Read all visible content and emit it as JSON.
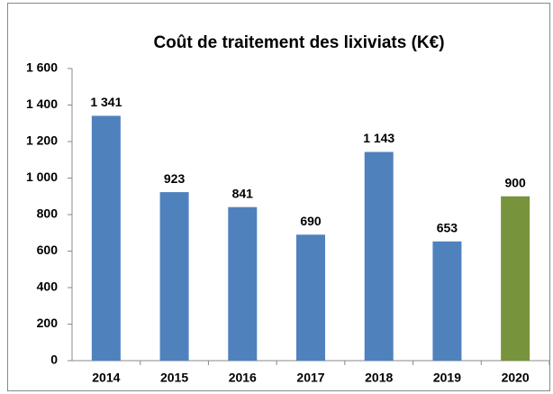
{
  "chart_data": {
    "type": "bar",
    "title": "Coût de traitement des lixiviats (K€)",
    "categories": [
      "2014",
      "2015",
      "2016",
      "2017",
      "2018",
      "2019",
      "2020"
    ],
    "values": [
      1341,
      923,
      841,
      690,
      1143,
      653,
      900
    ],
    "value_labels": [
      "1 341",
      "923",
      "841",
      "690",
      "1 143",
      "653",
      "900"
    ],
    "colors": [
      "#4f81bd",
      "#4f81bd",
      "#4f81bd",
      "#4f81bd",
      "#4f81bd",
      "#4f81bd",
      "#77933c"
    ],
    "ylim": [
      0,
      1600
    ],
    "yticks": [
      0,
      200,
      400,
      600,
      800,
      {
        "value": 1000,
        "label": "1 000"
      },
      {
        "value": 1200,
        "label": "1 200"
      },
      {
        "value": 1400,
        "label": "1 400"
      },
      {
        "value": 1600,
        "label": "1 600"
      }
    ],
    "grid": false
  }
}
